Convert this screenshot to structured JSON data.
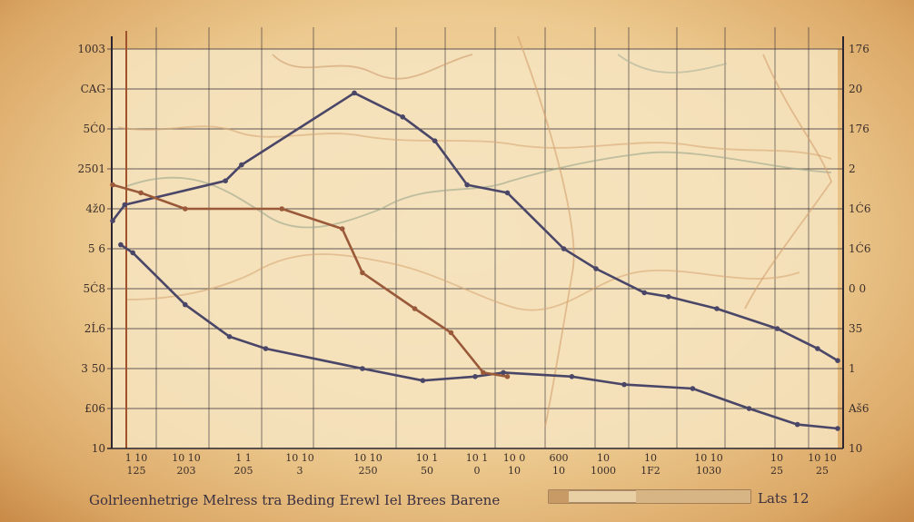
{
  "chart_data": {
    "type": "line",
    "title": "",
    "xlabel": "",
    "ylabel": "",
    "grid": true,
    "left_ticks": [
      "1003",
      "CAG",
      "5Ć0",
      "2501",
      "4ž0",
      "5 6",
      "5Ć8",
      "2Ĺ6",
      "3 50",
      "£06",
      "10"
    ],
    "right_ticks": [
      "176",
      "20",
      "176",
      "2",
      "1Ć6",
      "1Ć6",
      "0 0",
      "35",
      "1",
      "Aš6",
      "10"
    ],
    "x_ticks_top": [
      "1 10",
      "10 10",
      "1 1",
      "10 10",
      "10 10",
      "10 1",
      "10 1",
      "10 0",
      "600",
      "10",
      "10",
      "10 10",
      "10",
      "10 10"
    ],
    "x_ticks_bottom": [
      "125",
      "203",
      "205",
      "3",
      "250",
      "50",
      "0",
      "10",
      "10",
      "1000",
      "1F2",
      "1030",
      "25",
      "25"
    ],
    "footer": {
      "caption": "Golrleenhetrige Melress tra Beding Erewl Iel Brees Barene",
      "scale_label": "Lats 12"
    },
    "series": [
      {
        "color": "#4a4668",
        "points": [
          [
            0,
            4.2
          ],
          [
            3,
            4.6
          ],
          [
            28,
            5.2
          ],
          [
            32,
            5.6
          ],
          [
            60,
            7.4
          ],
          [
            72,
            6.8
          ],
          [
            80,
            6.2
          ],
          [
            88,
            5.1
          ],
          [
            98,
            4.9
          ],
          [
            112,
            3.5
          ],
          [
            120,
            3.0
          ],
          [
            132,
            2.4
          ],
          [
            138,
            2.3
          ],
          [
            150,
            2.0
          ],
          [
            165,
            1.5
          ],
          [
            175,
            1.0
          ],
          [
            180,
            0.7
          ]
        ]
      },
      {
        "color": "#4a4668",
        "points": [
          [
            2,
            3.6
          ],
          [
            5,
            3.4
          ],
          [
            18,
            2.1
          ],
          [
            29,
            1.3
          ],
          [
            38,
            1.0
          ],
          [
            62,
            0.5
          ],
          [
            77,
            0.2
          ],
          [
            90,
            0.3
          ],
          [
            97,
            0.4
          ],
          [
            114,
            0.3
          ],
          [
            127,
            0.1
          ],
          [
            144,
            0.0
          ],
          [
            158,
            -0.5
          ],
          [
            170,
            -0.9
          ],
          [
            180,
            -1.0
          ]
        ]
      },
      {
        "color": "#9a5a3a",
        "points": [
          [
            0,
            5.1
          ],
          [
            7,
            4.9
          ],
          [
            18,
            4.5
          ],
          [
            42,
            4.5
          ],
          [
            57,
            4.0
          ],
          [
            62,
            2.9
          ],
          [
            75,
            2.0
          ],
          [
            84,
            1.4
          ],
          [
            92,
            0.4
          ],
          [
            98,
            0.3
          ]
        ]
      }
    ],
    "xlim": [
      0,
      180
    ],
    "ylim": [
      -1.5,
      8.5
    ]
  }
}
